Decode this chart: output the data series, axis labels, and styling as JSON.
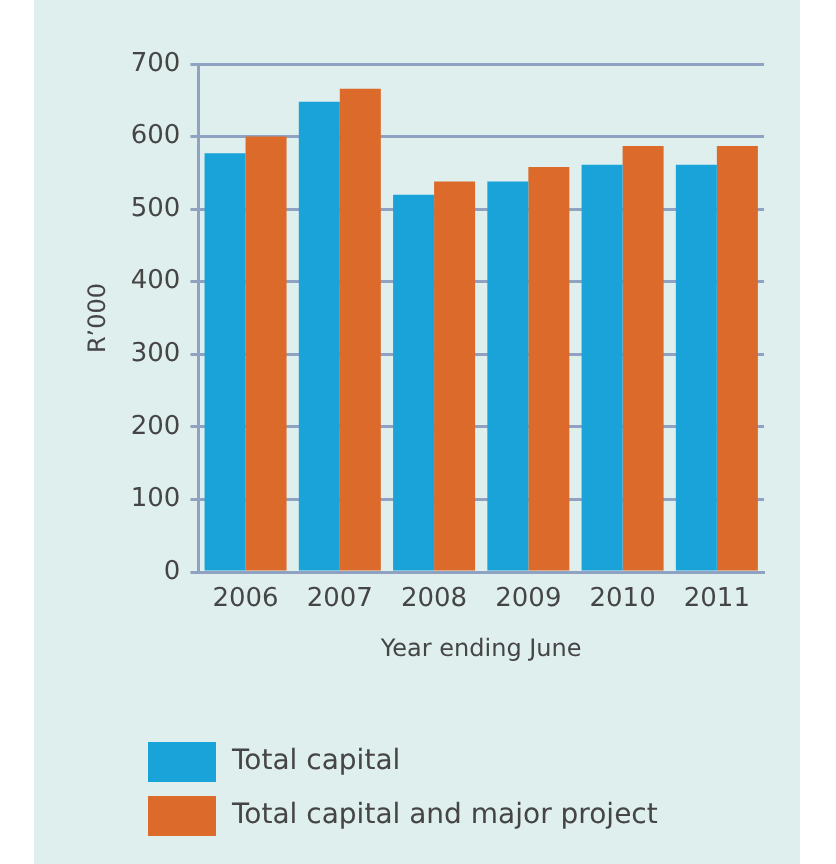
{
  "chart_data": {
    "type": "bar",
    "xlabel": "Year ending June",
    "ylabel": "R’000",
    "categories": [
      "2006",
      "2007",
      "2008",
      "2009",
      "2010",
      "2011"
    ],
    "series": [
      {
        "name": "Total capital",
        "color": "#1aa3d9",
        "values": [
          577,
          648,
          520,
          538,
          561,
          561
        ]
      },
      {
        "name": "Total capital and major project",
        "color": "#dc6a2a",
        "values": [
          600,
          666,
          538,
          558,
          587,
          587
        ]
      }
    ],
    "ylim": [
      0,
      700
    ],
    "yticks": [
      0,
      100,
      200,
      300,
      400,
      500,
      600,
      700
    ],
    "grid": "y",
    "legend": "bottom"
  }
}
